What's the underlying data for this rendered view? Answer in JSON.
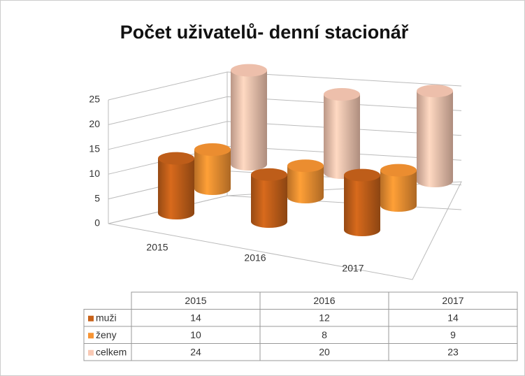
{
  "chart_data": {
    "type": "bar3d_cylinder",
    "title": "Počet uživatelů- denní stacionář",
    "categories": [
      "2015",
      "2016",
      "2017"
    ],
    "series": [
      {
        "name": "muži",
        "color": "#c8621a",
        "values": [
          14,
          12,
          14
        ]
      },
      {
        "name": "ženy",
        "color": "#f79433",
        "values": [
          10,
          8,
          9
        ]
      },
      {
        "name": "celkem",
        "color": "#f9c9b4",
        "values": [
          24,
          20,
          23
        ]
      }
    ],
    "ylim": [
      0,
      25
    ],
    "yticks": [
      0,
      5,
      10,
      15,
      20,
      25
    ],
    "grid": true,
    "data_table": true
  }
}
